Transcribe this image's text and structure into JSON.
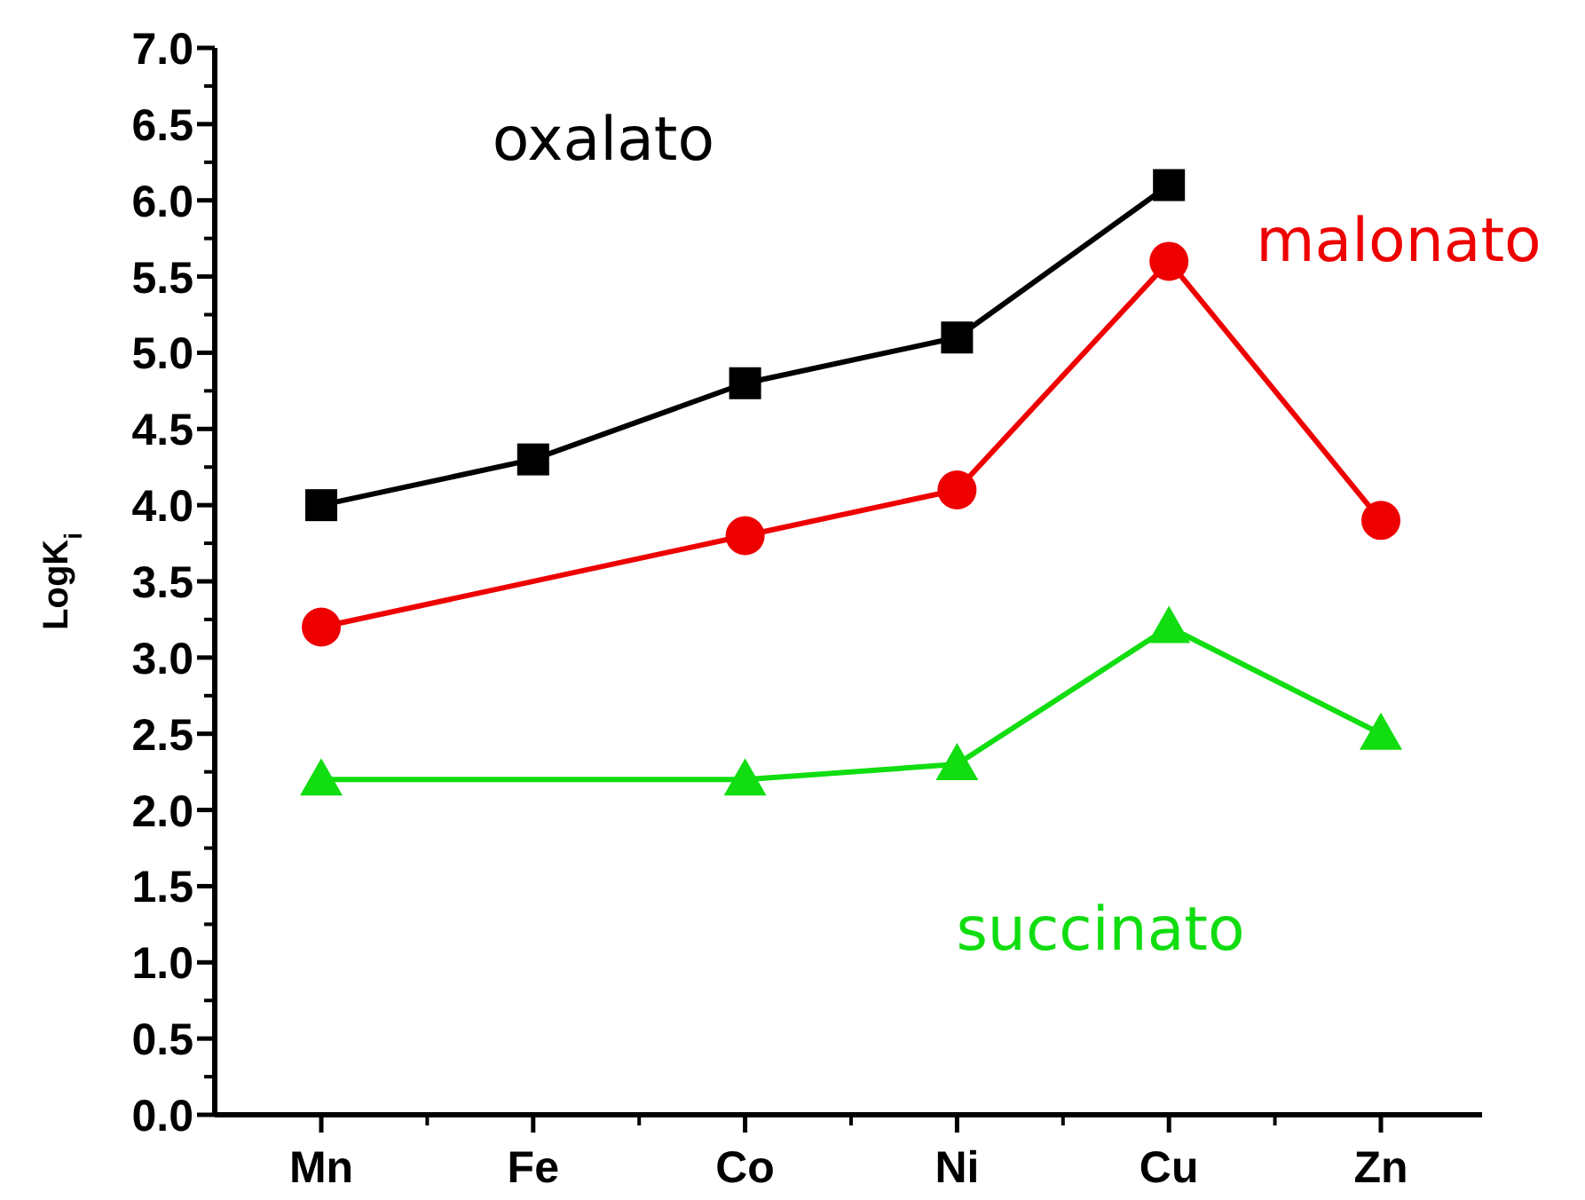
{
  "chart_data": {
    "type": "line",
    "ylabel": "LogK$_{i}$",
    "categories": [
      "Mn",
      "Fe",
      "Co",
      "Ni",
      "Cu",
      "Zn"
    ],
    "series": [
      {
        "name": "oxalato",
        "color": "#000000",
        "marker": "square",
        "values": [
          4.0,
          4.3,
          4.8,
          5.1,
          6.1,
          null
        ]
      },
      {
        "name": "malonato",
        "color": "#ee0000",
        "marker": "circle",
        "values": [
          3.2,
          null,
          3.8,
          4.1,
          5.6,
          3.9
        ]
      },
      {
        "name": "succinato",
        "color": "#11dd11",
        "marker": "triangle",
        "values": [
          2.2,
          null,
          2.2,
          2.3,
          3.2,
          2.5
        ]
      }
    ],
    "ylim": [
      0,
      7
    ],
    "yticks": [
      {
        "value": 0,
        "label": "0.0"
      },
      {
        "value": 0.5,
        "label": "0.5"
      },
      {
        "value": 1,
        "label": "1.0"
      },
      {
        "value": 1.5,
        "label": "1.5"
      },
      {
        "value": 2,
        "label": "2.0"
      },
      {
        "value": 2.5,
        "label": "2.5"
      },
      {
        "value": 3,
        "label": "3.0"
      },
      {
        "value": 3.5,
        "label": "3.5"
      },
      {
        "value": 4,
        "label": "4.0"
      },
      {
        "value": 4.5,
        "label": "4.5"
      },
      {
        "value": 5,
        "label": "5.0"
      },
      {
        "value": 5.5,
        "label": "5.5"
      },
      {
        "value": 6,
        "label": "6.0"
      },
      {
        "value": 6.5,
        "label": "6.5"
      },
      {
        "value": 7,
        "label": "7.0"
      }
    ],
    "grid": false
  }
}
